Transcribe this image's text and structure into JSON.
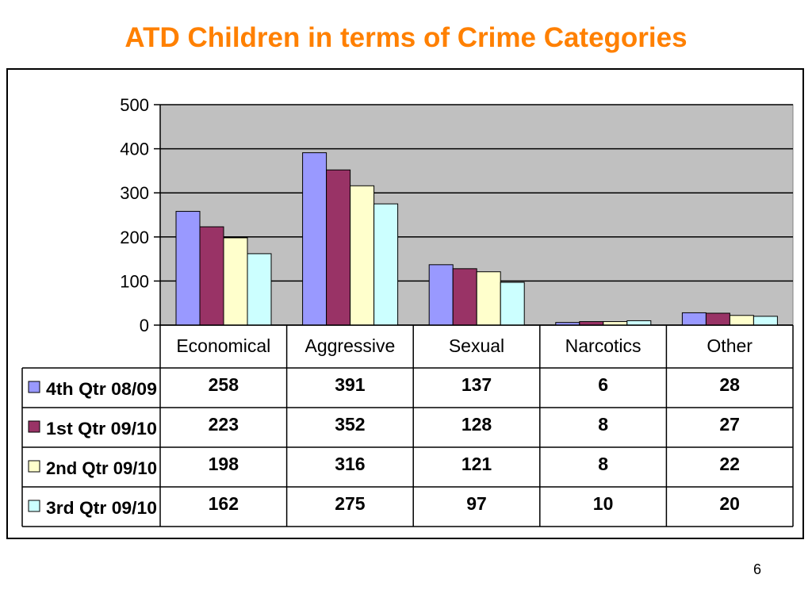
{
  "slide": {
    "title": "ATD Children in terms of Crime Categories",
    "page_number": "6"
  },
  "chart_data": {
    "type": "bar",
    "title": "ATD Children in terms of Crime Categories",
    "xlabel": "",
    "ylabel": "",
    "ylim": [
      0,
      500
    ],
    "yticks": [
      "0",
      "100",
      "200",
      "300",
      "400",
      "500"
    ],
    "grid": true,
    "plot_background": "#C0C0C0",
    "legend_position": "data-table-left",
    "categories": [
      "Economical",
      "Aggressive",
      "Sexual",
      "Narcotics",
      "Other"
    ],
    "series": [
      {
        "name": "4th Qtr 08/09",
        "color": "#9999FF",
        "values": [
          258,
          391,
          137,
          6,
          28
        ]
      },
      {
        "name": "1st Qtr 09/10",
        "color": "#993366",
        "values": [
          223,
          352,
          128,
          8,
          27
        ]
      },
      {
        "name": "2nd Qtr 09/10",
        "color": "#FFFFCC",
        "values": [
          198,
          316,
          121,
          8,
          22
        ]
      },
      {
        "name": "3rd Qtr 09/10",
        "color": "#CCFFFF",
        "values": [
          162,
          275,
          97,
          10,
          20
        ]
      }
    ]
  }
}
